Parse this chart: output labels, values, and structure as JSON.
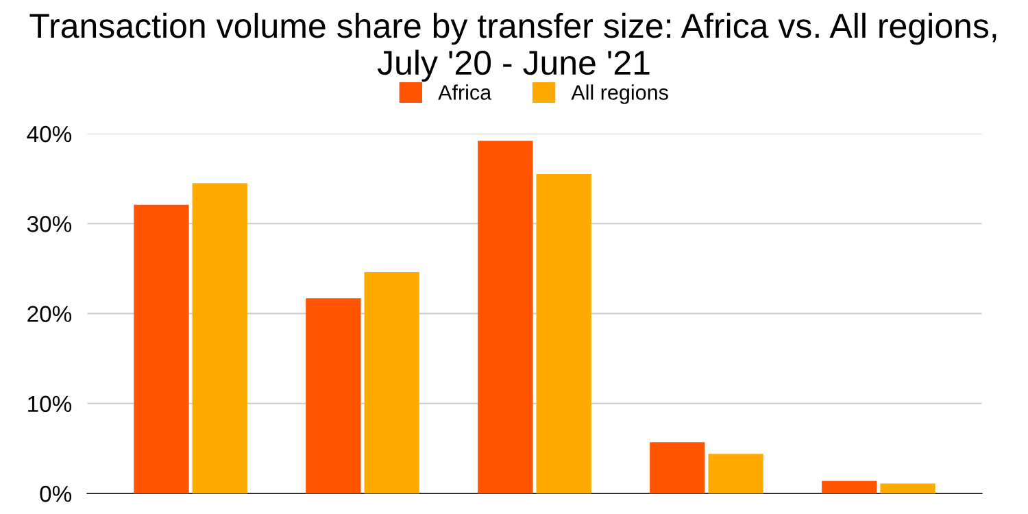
{
  "chart_data": {
    "type": "bar",
    "title": "Transaction volume share by transfer size: Africa vs. All regions, July '20 - June '21",
    "categories": [
      null,
      null,
      null,
      null,
      null
    ],
    "series": [
      {
        "name": "Africa",
        "color": "#ff5500",
        "values": [
          32.1,
          21.7,
          39.2,
          5.7,
          1.4
        ]
      },
      {
        "name": "All regions",
        "color": "#ffaa00",
        "values": [
          34.5,
          24.6,
          35.5,
          4.4,
          1.1
        ]
      }
    ],
    "ylim": [
      0,
      40
    ],
    "yticks": [
      {
        "value": 0,
        "label": "0%"
      },
      {
        "value": 10,
        "label": "10%"
      },
      {
        "value": 20,
        "label": "20%"
      },
      {
        "value": 30,
        "label": "30%"
      },
      {
        "value": 40,
        "label": "40%"
      }
    ],
    "grid": "y",
    "legend": "top"
  }
}
